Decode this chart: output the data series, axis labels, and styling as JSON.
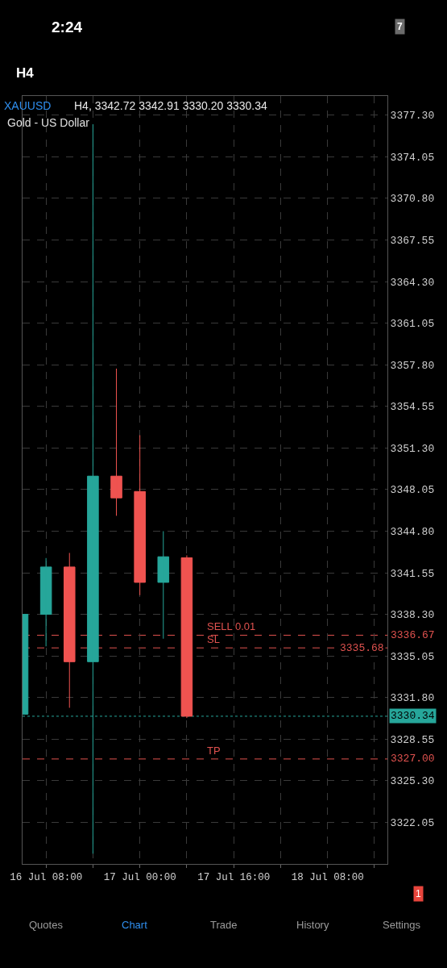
{
  "chart_data": {
    "type": "candlestick",
    "title": "XAUUSD",
    "subtitle": "Gold - US Dollar",
    "x": [
      "--07-16T04:00",
      "--07-16T08:00",
      "--07-16T12:00",
      "--07-16T16:00",
      "--07-16T20:00",
      "--07-17T00:00",
      "--07-17T04:00",
      "--07-17T08:00"
    ],
    "ohlc": [
      [
        3330.5,
        3338.3,
        3330.5,
        3338.3
      ],
      [
        3338.3,
        3342.7,
        3335.8,
        3342.0
      ],
      [
        3342.0,
        3343.1,
        3331.0,
        3334.6
      ],
      [
        3334.6,
        3376.6,
        3319.6,
        3349.1
      ],
      [
        3349.1,
        3357.5,
        3346.0,
        3347.4
      ],
      [
        3347.9,
        3352.3,
        3339.8,
        3340.8
      ],
      [
        3340.8,
        3344.8,
        3336.4,
        3342.8
      ],
      [
        3342.72,
        3342.91,
        3330.2,
        3330.34
      ]
    ],
    "colors": [
      "#26a69a",
      "#26a69a",
      "#ef5350",
      "#26a69a",
      "#ef5350",
      "#ef5350",
      "#26a69a",
      "#ef5350"
    ],
    "xlim": [
      "--07-16T04:00",
      "--07-18T18:12"
    ],
    "xticks": [
      {
        "value": "--07-16T08:00",
        "label": "16 Jul 08:00"
      },
      {
        "value": "--07-16T16:00",
        "label": null
      },
      {
        "value": "--07-17T00:00",
        "label": "17 Jul 00:00"
      },
      {
        "value": "--07-17T08:00",
        "label": null
      },
      {
        "value": "--07-17T16:00",
        "label": "17 Jul 16:00"
      },
      {
        "value": "--07-18T00:00",
        "label": null
      },
      {
        "value": "--07-18T08:00",
        "label": "18 Jul 08:00"
      },
      {
        "value": "--07-18T16:00",
        "label": null
      }
    ],
    "ylim": [
      3318.8,
      3378.8
    ],
    "yticks": [
      {
        "value": 3377.3,
        "label": "3377.30"
      },
      3374.05,
      {
        "value": 3370.8,
        "label": "3370.80"
      },
      3367.55,
      {
        "value": 3364.3,
        "label": "3364.30"
      },
      3361.05,
      {
        "value": 3357.8,
        "label": "3357.80"
      },
      3354.55,
      {
        "value": 3351.3,
        "label": "3351.30"
      },
      3348.05,
      {
        "value": 3344.8,
        "label": "3344.80"
      },
      3341.55,
      {
        "value": 3338.3,
        "label": "3338.30"
      },
      3335.05,
      {
        "value": 3331.8,
        "label": "3331.80"
      },
      3328.55,
      {
        "value": 3325.3,
        "label": "3325.30"
      },
      3322.05
    ],
    "grid": true,
    "ref_lines": [
      {
        "axis": "y",
        "value": 3336.67,
        "label": "SELL 0.01",
        "color": "#e0524f",
        "line_style": "dashed"
      },
      {
        "axis": "y",
        "value": 3335.68,
        "label": "SL",
        "color": "#e0524f",
        "line_style": "dashed"
      },
      {
        "axis": "y",
        "value": 3330.34,
        "color": "#26a69a",
        "line_style": "dotted"
      },
      {
        "axis": "y",
        "value": 3327.0,
        "label": "TP",
        "color": "#e0524f",
        "line_style": "dashed"
      }
    ],
    "annotations": [
      "H4, 3342.72 3342.91 3330.20 3330.34",
      "2:24",
      "7",
      "H4",
      "Quotes",
      "Chart",
      "Trade",
      "History",
      "Settings",
      "1",
      "3336.67",
      "3335.68",
      "3330.34",
      "3327.00"
    ]
  }
}
